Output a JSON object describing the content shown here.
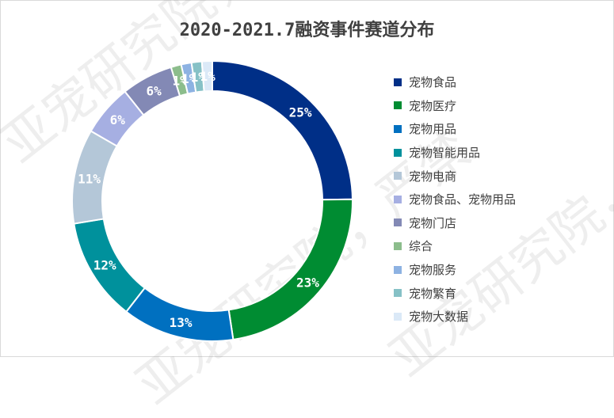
{
  "chart_data": {
    "type": "pie",
    "title": "2020-2021.7融资事件赛道分布",
    "legend_position": "right",
    "slices": [
      {
        "label": "宠物食品",
        "value": 25,
        "value_label": "25%",
        "color": "#002f87"
      },
      {
        "label": "宠物医疗",
        "value": 23,
        "value_label": "23%",
        "color": "#008c32"
      },
      {
        "label": "宠物用品",
        "value": 13,
        "value_label": "13%",
        "color": "#0070c0"
      },
      {
        "label": "宠物智能用品",
        "value": 12,
        "value_label": "12%",
        "color": "#00919c"
      },
      {
        "label": "宠物电商",
        "value": 11,
        "value_label": "11%",
        "color": "#b4c7d8"
      },
      {
        "label": "宠物食品、宠物用品",
        "value": 6,
        "value_label": "6%",
        "color": "#a6afe2"
      },
      {
        "label": "宠物门店",
        "value": 6,
        "value_label": "6%",
        "color": "#8389b5"
      },
      {
        "label": "综合",
        "value": 1.2,
        "value_label": "1%",
        "color": "#8cbd8c"
      },
      {
        "label": "宠物服务",
        "value": 1.2,
        "value_label": "1%",
        "color": "#8db2e2"
      },
      {
        "label": "宠物繁育",
        "value": 1.2,
        "value_label": "1%",
        "color": "#86c1c6"
      },
      {
        "label": "宠物大数据",
        "value": 1.2,
        "value_label": "1%",
        "color": "#dbe9f7"
      }
    ]
  },
  "watermark": {
    "text": "亚宠研究院，严禁"
  }
}
